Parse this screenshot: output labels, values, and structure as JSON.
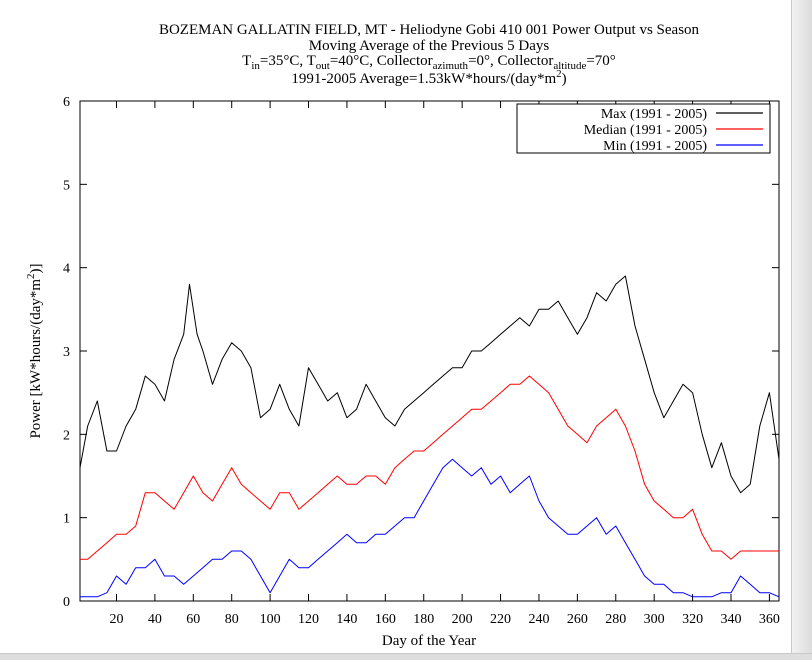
{
  "chart_data": {
    "type": "line",
    "title_lines": [
      "BOZEMAN GALLATIN FIELD, MT - Heliodyne Gobi 410 001 Power Output vs Season",
      "Moving Average of the Previous 5 Days",
      "T_in=35°C, T_out=40°C, Collector_azimuth=0°, Collector_altitude=70°",
      "1991-2005 Average=1.53kW*hours/(day*m^2)"
    ],
    "title": {
      "line1": "BOZEMAN GALLATIN FIELD, MT - Heliodyne Gobi 410 001 Power Output vs Season",
      "line2": "Moving Average of the Previous 5 Days",
      "line3": {
        "t": "T",
        "in": "in",
        "s1": "=35°C, ",
        "t2": "T",
        "out": "out",
        "s2": "=40°C, Collector",
        "azimuth": "azimuth",
        "s3": "=0°, Collector",
        "altitude": "altitude",
        "s4": "=70°"
      },
      "line4": {
        "pre": "1991-2005 Average=1.53kW*hours/(day*m",
        "sup": "2",
        "post": ")"
      }
    },
    "xlabel": "Day of the Year",
    "ylabel": {
      "pre": "Power [kW*hours/(day*m",
      "sup": "2",
      "post": ")]"
    },
    "xlim": [
      1,
      365
    ],
    "ylim": [
      0,
      6
    ],
    "x_ticks": [
      20,
      40,
      60,
      80,
      100,
      120,
      140,
      160,
      180,
      200,
      220,
      240,
      260,
      280,
      300,
      320,
      340,
      360
    ],
    "y_ticks": [
      0,
      1,
      2,
      3,
      4,
      5,
      6
    ],
    "grid": false,
    "legend": "top-right",
    "series": [
      {
        "name": "Max (1991 - 2005)",
        "color": "#000000",
        "x": [
          1,
          5,
          10,
          15,
          20,
          25,
          30,
          35,
          40,
          45,
          50,
          55,
          58,
          62,
          65,
          70,
          75,
          80,
          85,
          90,
          95,
          100,
          105,
          110,
          115,
          120,
          125,
          130,
          135,
          140,
          145,
          150,
          155,
          160,
          165,
          170,
          175,
          180,
          185,
          190,
          195,
          200,
          205,
          210,
          215,
          220,
          225,
          230,
          235,
          240,
          245,
          250,
          255,
          260,
          265,
          270,
          275,
          280,
          285,
          290,
          295,
          300,
          305,
          310,
          315,
          320,
          325,
          330,
          335,
          340,
          345,
          350,
          355,
          360,
          365
        ],
        "values": [
          1.6,
          2.1,
          2.4,
          1.8,
          1.8,
          2.1,
          2.3,
          2.7,
          2.6,
          2.4,
          2.9,
          3.2,
          3.8,
          3.2,
          3.0,
          2.6,
          2.9,
          3.1,
          3.0,
          2.8,
          2.2,
          2.3,
          2.6,
          2.3,
          2.1,
          2.8,
          2.6,
          2.4,
          2.5,
          2.2,
          2.3,
          2.6,
          2.4,
          2.2,
          2.1,
          2.3,
          2.4,
          2.5,
          2.6,
          2.7,
          2.8,
          2.8,
          3.0,
          3.0,
          3.1,
          3.2,
          3.3,
          3.4,
          3.3,
          3.5,
          3.5,
          3.6,
          3.4,
          3.2,
          3.4,
          3.7,
          3.6,
          3.8,
          3.9,
          3.3,
          2.9,
          2.5,
          2.2,
          2.4,
          2.6,
          2.5,
          2.0,
          1.6,
          1.9,
          1.5,
          1.3,
          1.4,
          2.1,
          2.5,
          1.7
        ]
      },
      {
        "name": "Median (1991 - 2005)",
        "color": "#ff0000",
        "x": [
          1,
          5,
          10,
          15,
          20,
          25,
          30,
          35,
          40,
          45,
          50,
          55,
          60,
          65,
          70,
          75,
          80,
          85,
          90,
          95,
          100,
          105,
          110,
          115,
          120,
          125,
          130,
          135,
          140,
          145,
          150,
          155,
          160,
          165,
          170,
          175,
          180,
          185,
          190,
          195,
          200,
          205,
          210,
          215,
          220,
          225,
          230,
          235,
          240,
          245,
          250,
          255,
          260,
          265,
          270,
          275,
          280,
          285,
          290,
          295,
          300,
          305,
          310,
          315,
          320,
          325,
          330,
          335,
          340,
          345,
          350,
          355,
          360,
          365
        ],
        "values": [
          0.5,
          0.5,
          0.6,
          0.7,
          0.8,
          0.8,
          0.9,
          1.3,
          1.3,
          1.2,
          1.1,
          1.3,
          1.5,
          1.3,
          1.2,
          1.4,
          1.6,
          1.4,
          1.3,
          1.2,
          1.1,
          1.3,
          1.3,
          1.1,
          1.2,
          1.3,
          1.4,
          1.5,
          1.4,
          1.4,
          1.5,
          1.5,
          1.4,
          1.6,
          1.7,
          1.8,
          1.8,
          1.9,
          2.0,
          2.1,
          2.2,
          2.3,
          2.3,
          2.4,
          2.5,
          2.6,
          2.6,
          2.7,
          2.6,
          2.5,
          2.3,
          2.1,
          2.0,
          1.9,
          2.1,
          2.2,
          2.3,
          2.1,
          1.8,
          1.4,
          1.2,
          1.1,
          1.0,
          1.0,
          1.1,
          0.8,
          0.6,
          0.6,
          0.5,
          0.6,
          0.6,
          0.6,
          0.6,
          0.6
        ]
      },
      {
        "name": "Min (1991 - 2005)",
        "color": "#0000ff",
        "x": [
          1,
          5,
          10,
          15,
          20,
          25,
          30,
          35,
          40,
          45,
          50,
          55,
          60,
          65,
          70,
          75,
          80,
          85,
          90,
          95,
          100,
          105,
          110,
          115,
          120,
          125,
          130,
          135,
          140,
          145,
          150,
          155,
          160,
          165,
          170,
          175,
          180,
          185,
          190,
          195,
          200,
          205,
          210,
          215,
          220,
          225,
          230,
          235,
          240,
          245,
          250,
          255,
          260,
          265,
          270,
          275,
          280,
          285,
          290,
          295,
          300,
          305,
          310,
          315,
          320,
          325,
          330,
          335,
          340,
          345,
          350,
          355,
          360,
          365
        ],
        "values": [
          0.05,
          0.05,
          0.05,
          0.1,
          0.3,
          0.2,
          0.4,
          0.4,
          0.5,
          0.3,
          0.3,
          0.2,
          0.3,
          0.4,
          0.5,
          0.5,
          0.6,
          0.6,
          0.5,
          0.3,
          0.1,
          0.3,
          0.5,
          0.4,
          0.4,
          0.5,
          0.6,
          0.7,
          0.8,
          0.7,
          0.7,
          0.8,
          0.8,
          0.9,
          1.0,
          1.0,
          1.2,
          1.4,
          1.6,
          1.7,
          1.6,
          1.5,
          1.6,
          1.4,
          1.5,
          1.3,
          1.4,
          1.5,
          1.2,
          1.0,
          0.9,
          0.8,
          0.8,
          0.9,
          1.0,
          0.8,
          0.9,
          0.7,
          0.5,
          0.3,
          0.2,
          0.2,
          0.1,
          0.1,
          0.05,
          0.05,
          0.05,
          0.1,
          0.1,
          0.3,
          0.2,
          0.1,
          0.1,
          0.05
        ]
      }
    ]
  }
}
